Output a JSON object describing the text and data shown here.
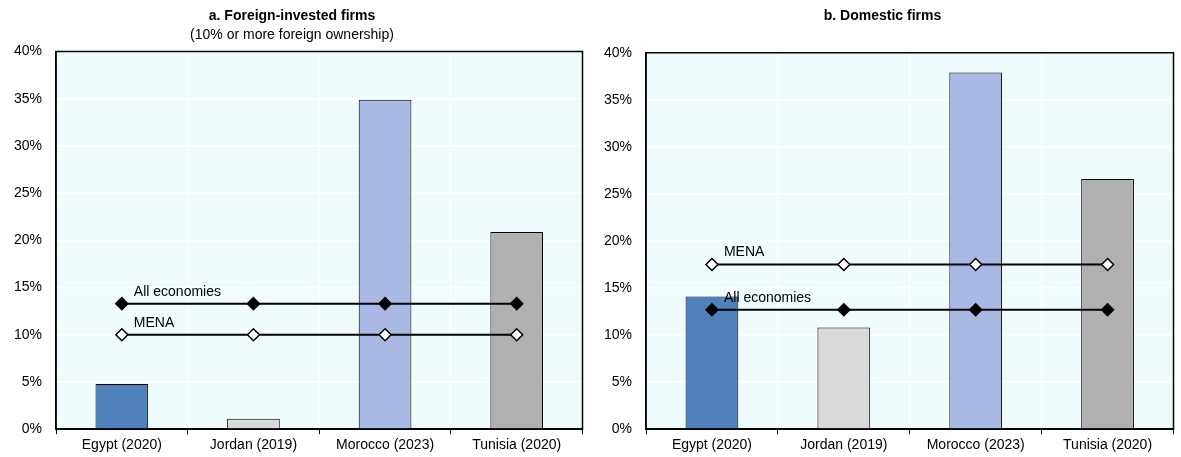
{
  "chart_data": [
    {
      "type": "bar",
      "title": "a. Foreign-invested firms",
      "subtitle": "(10% or more foreign ownership)",
      "categories": [
        "Egypt (2020)",
        "Jordan (2019)",
        "Morocco (2023)",
        "Tunisia (2020)"
      ],
      "ylim": [
        0,
        40
      ],
      "yticks": [
        {
          "value": 0,
          "label": "0%"
        },
        {
          "value": 5,
          "label": "5%"
        },
        {
          "value": 10,
          "label": "10%"
        },
        {
          "value": 15,
          "label": "15%"
        },
        {
          "value": 20,
          "label": "20%"
        },
        {
          "value": 25,
          "label": "25%"
        },
        {
          "value": 30,
          "label": "30%"
        },
        {
          "value": 35,
          "label": "35%"
        },
        {
          "value": 40,
          "label": "40%"
        }
      ],
      "grid": true,
      "legend": false,
      "marker": "diamond",
      "series": [
        {
          "colors": [
            "#4f81bd",
            "#d9d9d9",
            "#a9b9e3",
            "#b0b0b0"
          ],
          "values": [
            4.8,
            1.1,
            34.9,
            20.9
          ]
        },
        {
          "type": "line",
          "name": "All economies",
          "color": "#000000",
          "values": [
            13.3,
            13.3,
            13.3,
            13.3
          ]
        },
        {
          "type": "line",
          "name": "MENA",
          "color": "#ffffff",
          "values": [
            10.0,
            10.0,
            10.0,
            10.0
          ]
        }
      ]
    },
    {
      "type": "bar",
      "title": "b. Domestic firms",
      "categories": [
        "Egypt (2020)",
        "Jordan (2019)",
        "Morocco (2023)",
        "Tunisia (2020)"
      ],
      "ylim": [
        0,
        40
      ],
      "yticks": [
        {
          "value": 0,
          "label": "0%"
        },
        {
          "value": 5,
          "label": "5%"
        },
        {
          "value": 10,
          "label": "10%"
        },
        {
          "value": 15,
          "label": "15%"
        },
        {
          "value": 20,
          "label": "20%"
        },
        {
          "value": 25,
          "label": "25%"
        },
        {
          "value": 30,
          "label": "30%"
        },
        {
          "value": 35,
          "label": "35%"
        },
        {
          "value": 40,
          "label": "40%"
        }
      ],
      "grid": true,
      "legend": false,
      "marker": "diamond",
      "series": [
        {
          "colors": [
            "#4f81bd",
            "#d9d9d9",
            "#a9b9e3",
            "#b0b0b0"
          ],
          "values": [
            14.1,
            10.8,
            37.9,
            26.6
          ]
        },
        {
          "type": "line",
          "name": "MENA",
          "color": "#ffffff",
          "values": [
            17.5,
            17.5,
            17.5,
            17.5
          ]
        },
        {
          "type": "line",
          "name": "All economies",
          "color": "#000000",
          "values": [
            12.7,
            12.7,
            12.7,
            12.7
          ]
        }
      ]
    }
  ]
}
